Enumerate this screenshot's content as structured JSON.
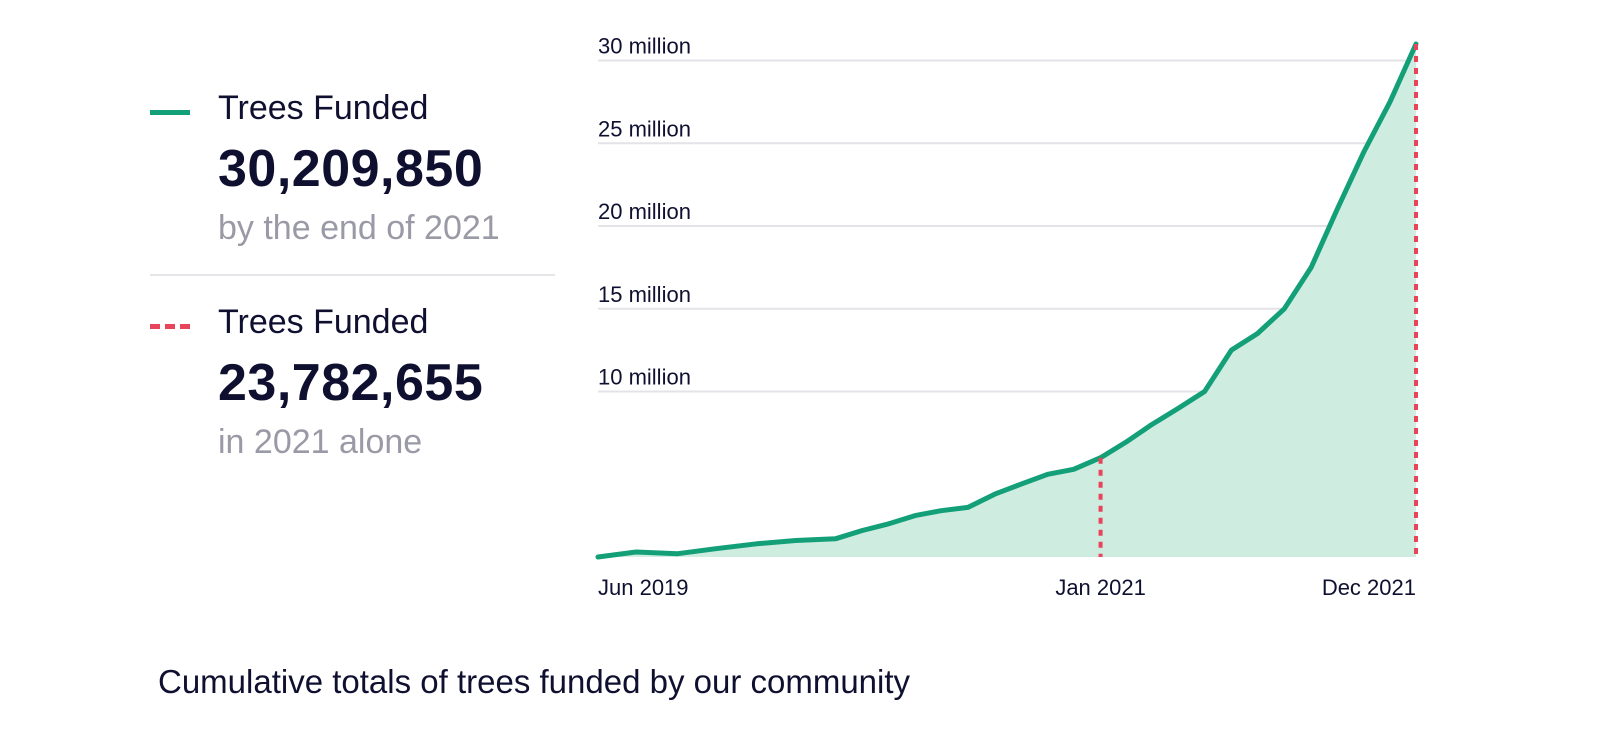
{
  "legend": {
    "total": {
      "label": "Trees Funded",
      "value": "30,209,850",
      "sub": "by the end of 2021",
      "line_style": "solid",
      "color": "#139f77"
    },
    "year": {
      "label": "Trees Funded",
      "value": "23,782,655",
      "sub": "in 2021 alone",
      "line_style": "dashed",
      "color": "#e8445a"
    }
  },
  "caption": "Cumulative totals of trees funded by our community",
  "chart_data": {
    "type": "area",
    "title": "",
    "xlabel": "",
    "ylabel": "",
    "x_ticks": [
      {
        "label": "Jun 2019",
        "date": "2019-06-01"
      },
      {
        "label": "Jan 2021",
        "date": "2021-01-01"
      },
      {
        "label": "Dec 2021",
        "date": "2021-12-31"
      }
    ],
    "y_ticks": [
      {
        "label": "10 million",
        "value": 10000000
      },
      {
        "label": "15 million",
        "value": 15000000
      },
      {
        "label": "20 million",
        "value": 20000000
      },
      {
        "label": "25 million",
        "value": 25000000
      },
      {
        "label": "30 million",
        "value": 30000000
      }
    ],
    "ylim": [
      0,
      31000000
    ],
    "xlim": [
      "2019-06-01",
      "2021-12-31"
    ],
    "grid": "horizontal",
    "fill_color": "#cfece1",
    "line_color": "#139f77",
    "marker_color": "#e8445a",
    "series": [
      {
        "x": [
          "2019-06-01",
          "2019-07-15",
          "2019-09-01",
          "2019-10-15",
          "2019-12-01",
          "2020-01-15",
          "2020-03-01",
          "2020-04-01",
          "2020-05-01",
          "2020-06-01",
          "2020-07-01",
          "2020-08-01",
          "2020-09-01",
          "2020-10-01",
          "2020-11-01",
          "2020-12-01",
          "2021-01-01",
          "2021-02-01",
          "2021-03-01",
          "2021-04-01",
          "2021-05-01",
          "2021-06-01",
          "2021-07-01",
          "2021-08-01",
          "2021-09-01",
          "2021-10-01",
          "2021-11-01",
          "2021-12-01",
          "2021-12-31"
        ],
        "y": [
          0,
          300000,
          200000,
          500000,
          800000,
          1000000,
          1100000,
          1600000,
          2000000,
          2500000,
          2800000,
          3000000,
          3800000,
          4400000,
          5000000,
          5300000,
          6000000,
          7000000,
          8000000,
          9000000,
          10000000,
          12500000,
          13500000,
          15000000,
          17500000,
          21000000,
          24500000,
          27500000,
          31000000
        ]
      }
    ],
    "markers": [
      {
        "date": "2021-01-01",
        "value": 6000000,
        "style": "dashed"
      },
      {
        "date": "2021-12-31",
        "value": 31000000,
        "style": "dashed"
      }
    ]
  }
}
